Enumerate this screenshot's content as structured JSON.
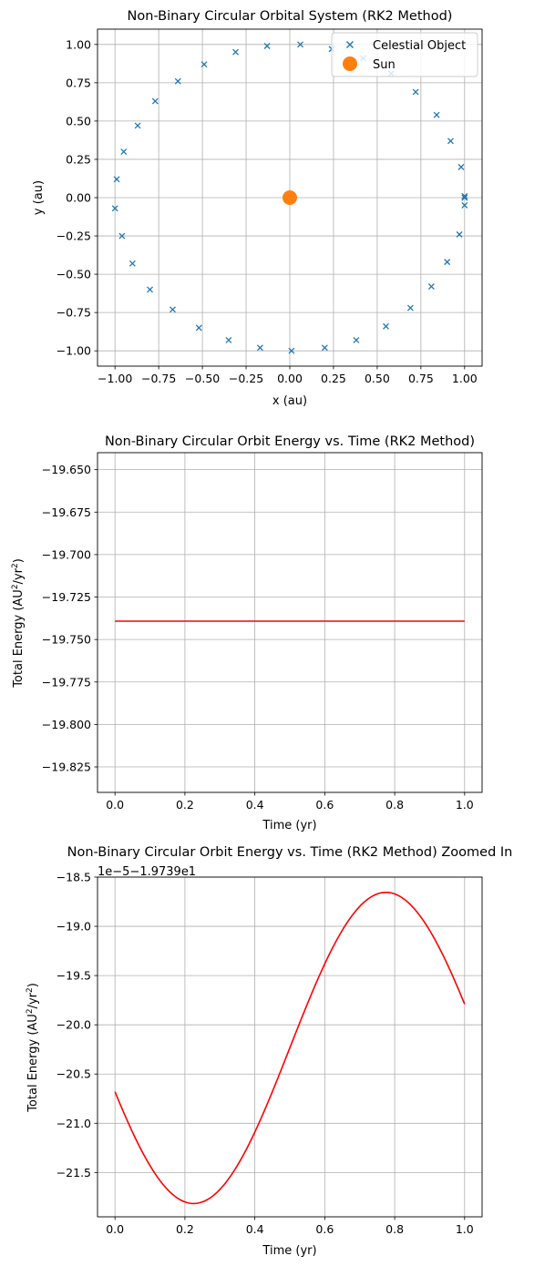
{
  "chart_data": [
    {
      "type": "scatter",
      "title": "Non-Binary Circular Orbital System (RK2 Method)",
      "xlabel": "x (au)",
      "ylabel": "y (au)",
      "xlim": [
        -1.1,
        1.1
      ],
      "ylim": [
        -1.1,
        1.1
      ],
      "xticks": [
        -1.0,
        -0.75,
        -0.5,
        -0.25,
        0.0,
        0.25,
        0.5,
        0.75,
        1.0
      ],
      "xtick_labels": [
        "−1.00",
        "−0.75",
        "−0.50",
        "−0.25",
        "0.00",
        "0.25",
        "0.50",
        "0.75",
        "1.00"
      ],
      "yticks": [
        1.0,
        0.75,
        0.5,
        0.25,
        0.0,
        -0.25,
        -0.5,
        -0.75,
        -1.0
      ],
      "ytick_labels": [
        "1.00",
        "0.75",
        "0.50",
        "0.25",
        "0.00",
        "−0.25",
        "−0.50",
        "−0.75",
        "−1.00"
      ],
      "grid": true,
      "legend_position": "top-right",
      "series": [
        {
          "name": "Celestial Object",
          "marker": "x",
          "color": "#1f77b4",
          "x": [
            1.0,
            1.0,
            0.98,
            0.92,
            0.84,
            0.72,
            0.58,
            0.42,
            0.24,
            0.06,
            -0.13,
            -0.31,
            -0.49,
            -0.64,
            -0.77,
            -0.87,
            -0.95,
            -0.99,
            -1.0,
            -0.96,
            -0.9,
            -0.8,
            -0.67,
            -0.52,
            -0.35,
            -0.17,
            0.01,
            0.2,
            0.38,
            0.55,
            0.69,
            0.81,
            0.9,
            0.97,
            1.0
          ],
          "y": [
            0.0,
            0.01,
            0.2,
            0.37,
            0.54,
            0.69,
            0.81,
            0.91,
            0.97,
            1.0,
            0.99,
            0.95,
            0.87,
            0.76,
            0.63,
            0.47,
            0.3,
            0.12,
            -0.07,
            -0.25,
            -0.43,
            -0.6,
            -0.73,
            -0.85,
            -0.93,
            -0.98,
            -1.0,
            -0.98,
            -0.93,
            -0.84,
            -0.72,
            -0.58,
            -0.42,
            -0.24,
            -0.05
          ]
        },
        {
          "name": "Sun",
          "marker": "circle",
          "color": "#ff7f0e",
          "x": [
            0.0
          ],
          "y": [
            0.0
          ]
        }
      ]
    },
    {
      "type": "line",
      "title": "Non-Binary Circular Orbit Energy vs. Time (RK2 Method)",
      "xlabel": "Time (yr)",
      "ylabel": "Total Energy (AU",
      "ylabel_sup1": "2",
      "ylabel_mid": "/yr",
      "ylabel_sup2": "2",
      "ylabel_end": ")",
      "xlim": [
        -0.05,
        1.05
      ],
      "ylim": [
        -19.84,
        -19.64
      ],
      "xticks": [
        0.0,
        0.2,
        0.4,
        0.6,
        0.8,
        1.0
      ],
      "xtick_labels": [
        "0.0",
        "0.2",
        "0.4",
        "0.6",
        "0.8",
        "1.0"
      ],
      "yticks": [
        -19.65,
        -19.675,
        -19.7,
        -19.725,
        -19.75,
        -19.775,
        -19.8,
        -19.825
      ],
      "ytick_labels": [
        "−19.650",
        "−19.675",
        "−19.700",
        "−19.725",
        "−19.750",
        "−19.775",
        "−19.800",
        "−19.825"
      ],
      "grid": true,
      "series": [
        {
          "color": "#ff0000",
          "x": [
            0.0,
            1.0
          ],
          "y": [
            -19.7392,
            -19.7392
          ]
        }
      ]
    },
    {
      "type": "line",
      "title": "Non-Binary Circular Orbit Energy vs. Time (RK2 Method) Zoomed In",
      "offset_text": "1e−5−1.9739e1",
      "xlabel": "Time (yr)",
      "ylabel": "Total Energy (AU",
      "ylabel_sup1": "2",
      "ylabel_mid": "/yr",
      "ylabel_sup2": "2",
      "ylabel_end": ")",
      "xlim": [
        -0.05,
        1.05
      ],
      "ylim": [
        -21.95,
        -18.5
      ],
      "xticks": [
        0.0,
        0.2,
        0.4,
        0.6,
        0.8,
        1.0
      ],
      "xtick_labels": [
        "0.0",
        "0.2",
        "0.4",
        "0.6",
        "0.8",
        "1.0"
      ],
      "yticks": [
        -18.5,
        -19.0,
        -19.5,
        -20.0,
        -20.5,
        -21.0,
        -21.5
      ],
      "ytick_labels": [
        "−18.5",
        "−19.0",
        "−19.5",
        "−20.0",
        "−20.5",
        "−21.0",
        "−21.5"
      ],
      "grid": true,
      "series": [
        {
          "color": "#ff0000",
          "curve": {
            "mean": -20.235,
            "amplitude": 1.58,
            "period": 1.1,
            "peak_time": 0.775
          },
          "x_range": [
            0.0,
            1.0
          ]
        }
      ]
    }
  ]
}
